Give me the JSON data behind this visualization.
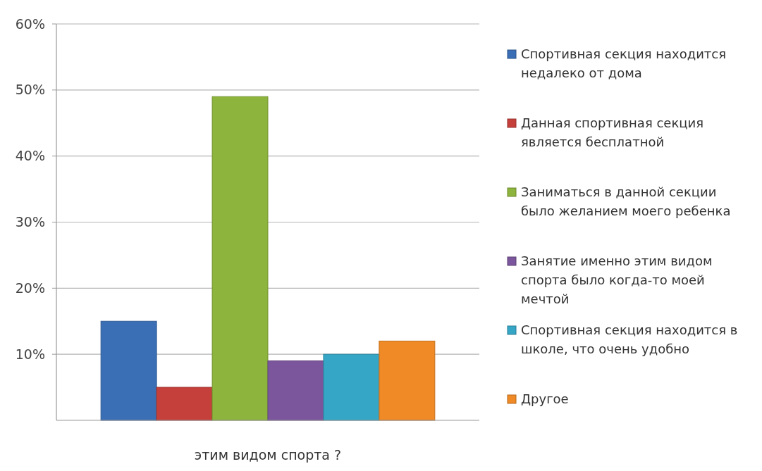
{
  "chart_data": {
    "type": "bar",
    "categories": [
      null
    ],
    "series": [
      {
        "name": "Спортивная секция находится недалеко от дома",
        "color": "#3a6fb5",
        "values": [
          15
        ]
      },
      {
        "name": "Данная спортивная секция является бесплатной",
        "color": "#c5403a",
        "values": [
          5
        ]
      },
      {
        "name": "Заниматься в данной секции было желанием моего ребенка",
        "color": "#8db43c",
        "values": [
          49
        ]
      },
      {
        "name": "Занятие именно этим видом спорта было когда-то моей мечтой",
        "color": "#7b569c",
        "values": [
          9
        ]
      },
      {
        "name": "Спортивная секция находится в школе, что очень удобно",
        "color": "#36a6c6",
        "values": [
          10
        ]
      },
      {
        "name": "Другое",
        "color": "#ef8a26",
        "values": [
          12
        ]
      }
    ],
    "ylim": [
      0,
      60
    ],
    "yticks": [
      {
        "value": 10,
        "label": "10%"
      },
      {
        "value": 20,
        "label": "20%"
      },
      {
        "value": 30,
        "label": "30%"
      },
      {
        "value": 40,
        "label": "40%"
      },
      {
        "value": 50,
        "label": "50%"
      },
      {
        "value": 60,
        "label": "60%"
      }
    ],
    "grid": "y",
    "legend": "right",
    "xlabel": "этим видом спорта ?"
  }
}
